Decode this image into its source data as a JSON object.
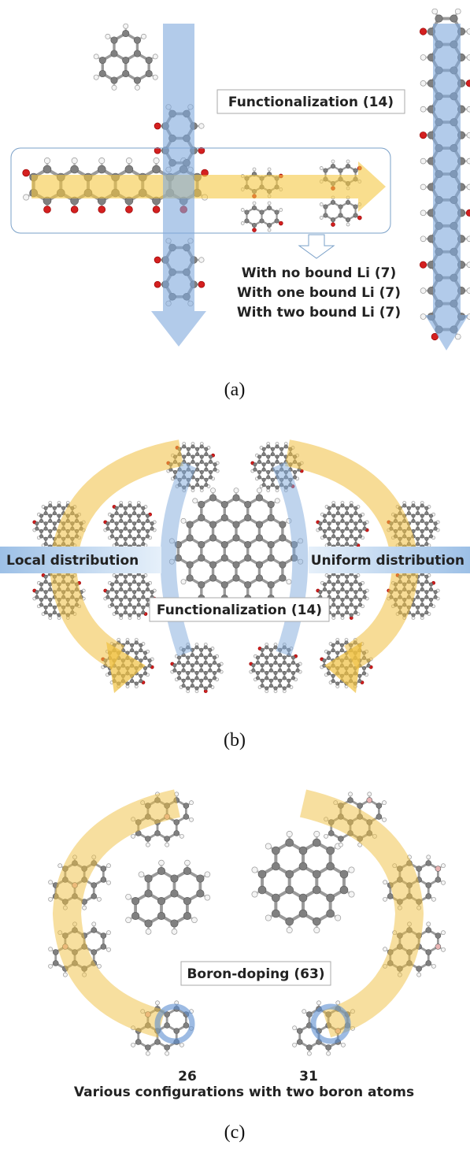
{
  "panel_a": {
    "heading": "Functionalization (14)",
    "li_states": [
      "With no bound Li (7)",
      "With one bound Li (7)",
      "With two bound Li (7)"
    ],
    "caption": "(a)"
  },
  "panel_b": {
    "left_label": "Local distribution",
    "right_label": "Uniform distribution",
    "heading": "Functionalization (14)",
    "caption": "(b)"
  },
  "panel_c": {
    "heading": "Boron-doping (63)",
    "counts": [
      "26",
      "31"
    ],
    "note": "Various configurations with two boron atoms",
    "caption": "(c)"
  }
}
